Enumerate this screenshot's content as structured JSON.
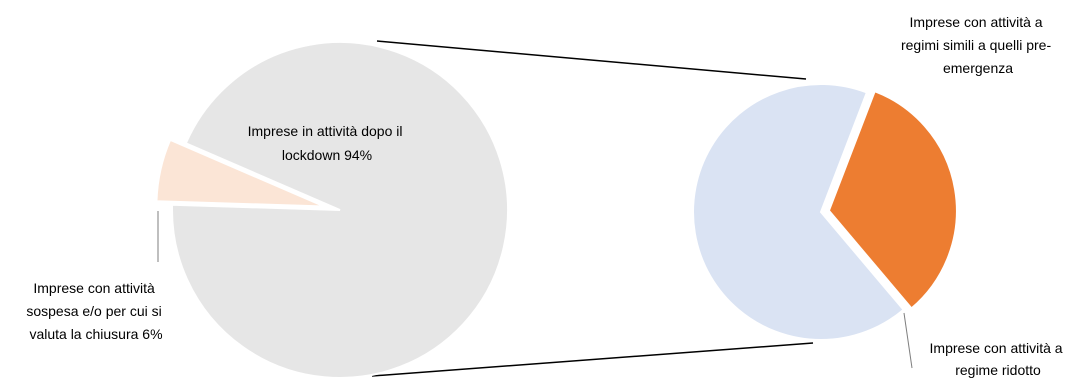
{
  "chart_data": [
    {
      "type": "pie",
      "slices": [
        {
          "label_lines": [
            "Imprese in attività dopo il",
            "lockdown 94%"
          ],
          "value": 94,
          "color": "#e6e6e6"
        },
        {
          "label_lines": [
            "Imprese con attività",
            "sospesa e/o per cui si",
            "valuta la chiusura 6%"
          ],
          "value": 6,
          "color": "#fbe5d6"
        }
      ]
    },
    {
      "type": "pie",
      "slices": [
        {
          "label_lines": [
            "Imprese con attività a",
            "regimi simili a quelli pre-",
            "emergenza"
          ],
          "value": 33,
          "color": "#ed7d31"
        },
        {
          "label_lines": [
            "Imprese con attività a",
            "regime ridotto"
          ],
          "value": 67,
          "color": "#dae3f3"
        }
      ]
    }
  ]
}
